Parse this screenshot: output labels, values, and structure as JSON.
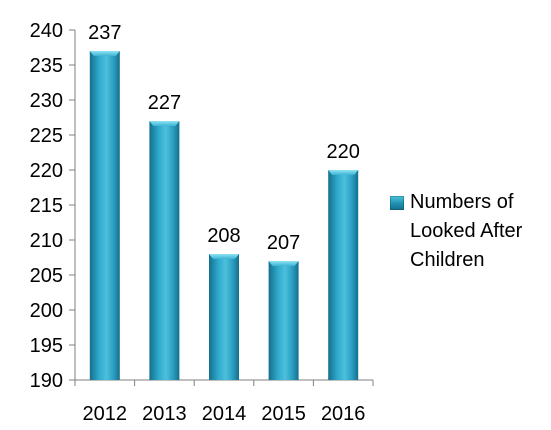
{
  "colors": {
    "bar_top": "#5fd0e6",
    "bar_mid": "#2a9cc0",
    "bar_bottom": "#146f8c",
    "axis": "#7f7f7f",
    "text": "#000000"
  },
  "chart_data": {
    "type": "bar",
    "categories": [
      "2012",
      "2013",
      "2014",
      "2015",
      "2016"
    ],
    "series": [
      {
        "name": "Numbers of Looked After Children",
        "values": [
          237,
          227,
          208,
          207,
          220
        ]
      }
    ],
    "data_labels": [
      "237",
      "227",
      "208",
      "207",
      "220"
    ],
    "yticks": [
      "190",
      "195",
      "200",
      "205",
      "210",
      "215",
      "220",
      "225",
      "230",
      "235",
      "240"
    ],
    "ylim": [
      190,
      240
    ],
    "title": "",
    "xlabel": "",
    "ylabel": "",
    "grid": false,
    "legend": "right"
  }
}
